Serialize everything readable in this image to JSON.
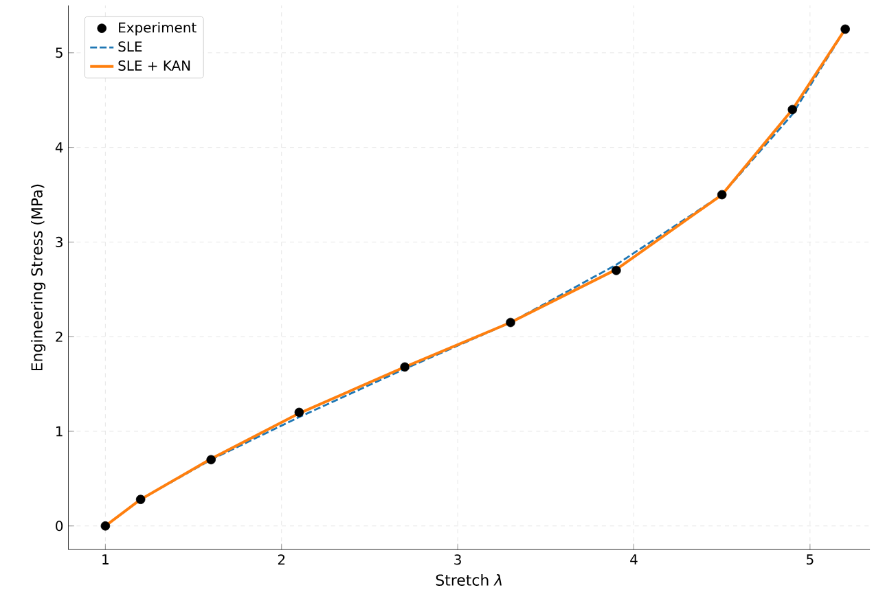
{
  "chart_data": {
    "type": "line",
    "xlabel": "Stretch *λ*",
    "ylabel": "Engineering Stress (MPa)",
    "x": [
      1,
      1.2,
      1.6,
      2.1,
      2.7,
      3.3,
      3.9,
      4.5,
      4.9,
      5.2
    ],
    "series": [
      {
        "name": "Experiment",
        "type": "scatter",
        "color": "#000000",
        "marker": "circle",
        "values": [
          0,
          0.28,
          0.7,
          1.2,
          1.68,
          2.15,
          2.7,
          3.5,
          4.4,
          5.25
        ]
      },
      {
        "name": "SLE",
        "color": "#1f77b4",
        "line_style": "dashed",
        "values": [
          0,
          0.28,
          0.7,
          1.15,
          1.66,
          2.15,
          2.76,
          3.5,
          4.35,
          5.25
        ]
      },
      {
        "name": "SLE + KAN",
        "color": "#ff7f0e",
        "line_style": "solid",
        "values": [
          0,
          0.28,
          0.71,
          1.19,
          1.68,
          2.15,
          2.71,
          3.5,
          4.4,
          5.25
        ]
      }
    ],
    "xlim": [
      0.79,
      5.34
    ],
    "ylim": [
      -0.25,
      5.5
    ],
    "xticks": [
      1,
      2,
      3,
      4,
      5
    ],
    "yticks": [
      0,
      1,
      2,
      3,
      4,
      5
    ],
    "grid": true,
    "legend": "top left"
  }
}
